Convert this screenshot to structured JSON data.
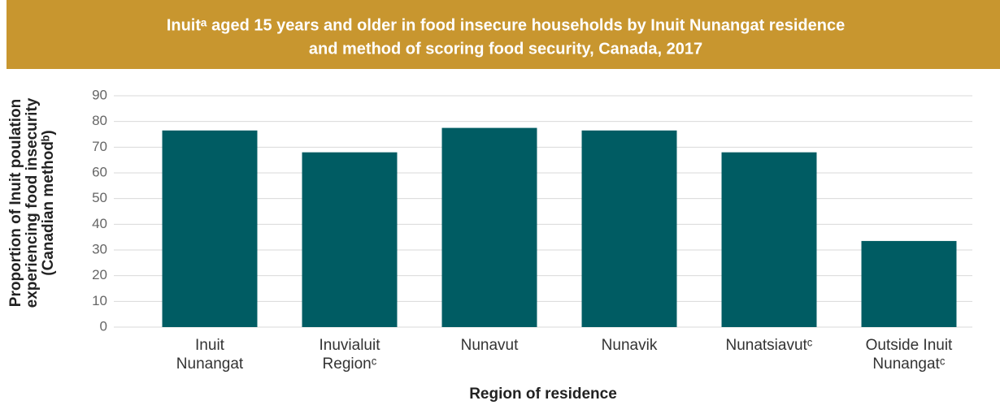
{
  "chart_data": {
    "type": "bar",
    "title": [
      "Inuitᵃ aged 15 years and older in food insecure households by Inuit Nunangat residence",
      "and method of scoring food security, Canada, 2017"
    ],
    "y_label": [
      "Proportion of Inuit poulation",
      "experiencing food insecurity",
      "(Canadian methodᵇ)"
    ],
    "x_label": "Region of residence",
    "categories": [
      [
        "Inuit",
        "Nunangat"
      ],
      [
        "Inuvialuit",
        "Regionᶜ"
      ],
      [
        "Nunavut"
      ],
      [
        "Nunavik"
      ],
      [
        "Nunatsiavutᶜ"
      ],
      [
        "Outside Inuit",
        "Nunangatᶜ"
      ]
    ],
    "values": [
      76.5,
      68,
      77.5,
      76.5,
      68,
      33.5
    ],
    "color": "#005c63",
    "title_background": "#c8962f",
    "ylim": [
      0,
      90
    ],
    "yticks": [
      0,
      10,
      20,
      30,
      40,
      50,
      60,
      70,
      80,
      90
    ],
    "grid": true
  }
}
